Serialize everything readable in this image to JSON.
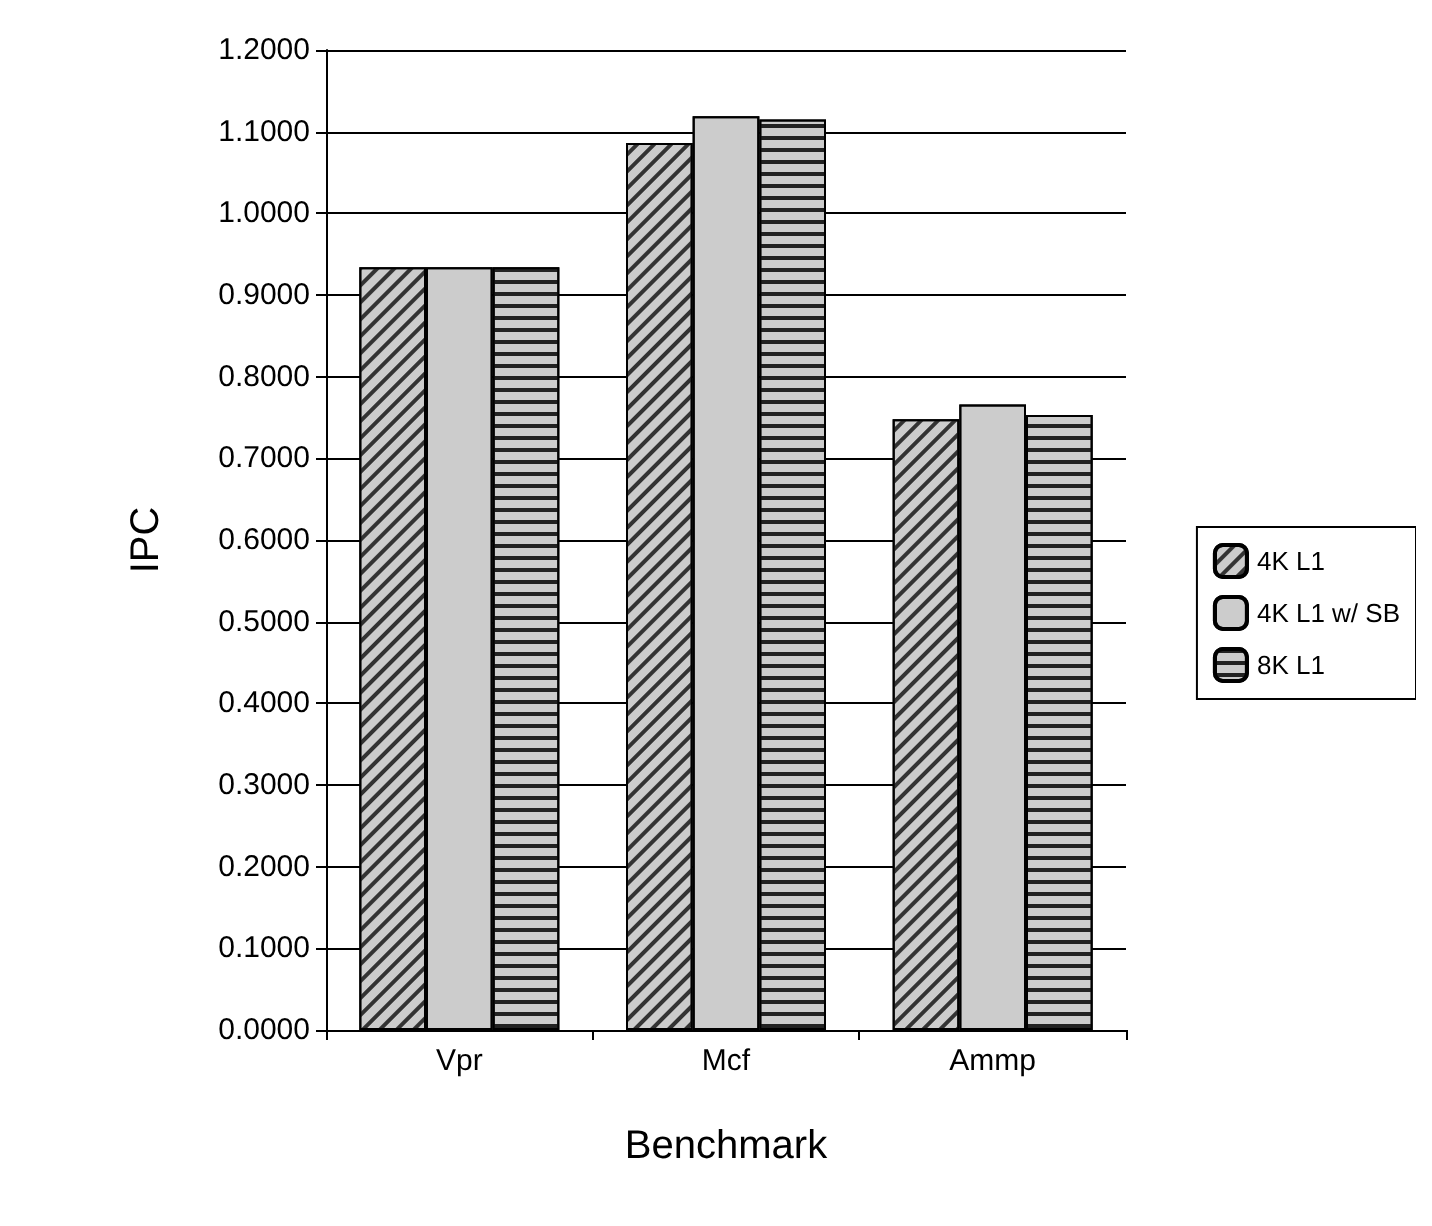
{
  "chart_data": {
    "type": "bar",
    "xlabel": "Benchmark",
    "ylabel": "IPC",
    "categories": [
      "Vpr",
      "Mcf",
      "Ammp"
    ],
    "series": [
      {
        "name": "4K L1",
        "color": "#cccccc",
        "values": [
          0.934,
          1.086,
          0.748
        ]
      },
      {
        "name": "4K L1 w/ SB",
        "color": "#cccccc",
        "values": [
          0.934,
          1.119,
          0.766
        ]
      },
      {
        "name": "8K L1",
        "color": "#cccccc",
        "values": [
          0.934,
          1.115,
          0.753
        ]
      }
    ],
    "ylim": [
      0,
      1.2
    ],
    "yticks": [
      {
        "value": 0,
        "label": "0.0000"
      },
      {
        "value": 0.1,
        "label": "0.1000"
      },
      {
        "value": 0.2,
        "label": "0.2000"
      },
      {
        "value": 0.3,
        "label": "0.3000"
      },
      {
        "value": 0.4,
        "label": "0.4000"
      },
      {
        "value": 0.5,
        "label": "0.5000"
      },
      {
        "value": 0.6,
        "label": "0.6000"
      },
      {
        "value": 0.7,
        "label": "0.7000"
      },
      {
        "value": 0.8,
        "label": "0.8000"
      },
      {
        "value": 0.9,
        "label": "0.9000"
      },
      {
        "value": 1,
        "label": "1.0000"
      },
      {
        "value": 1.1,
        "label": "1.1000"
      },
      {
        "value": 1.2,
        "label": "1.2000"
      }
    ],
    "grid": "y",
    "legend": "right"
  }
}
